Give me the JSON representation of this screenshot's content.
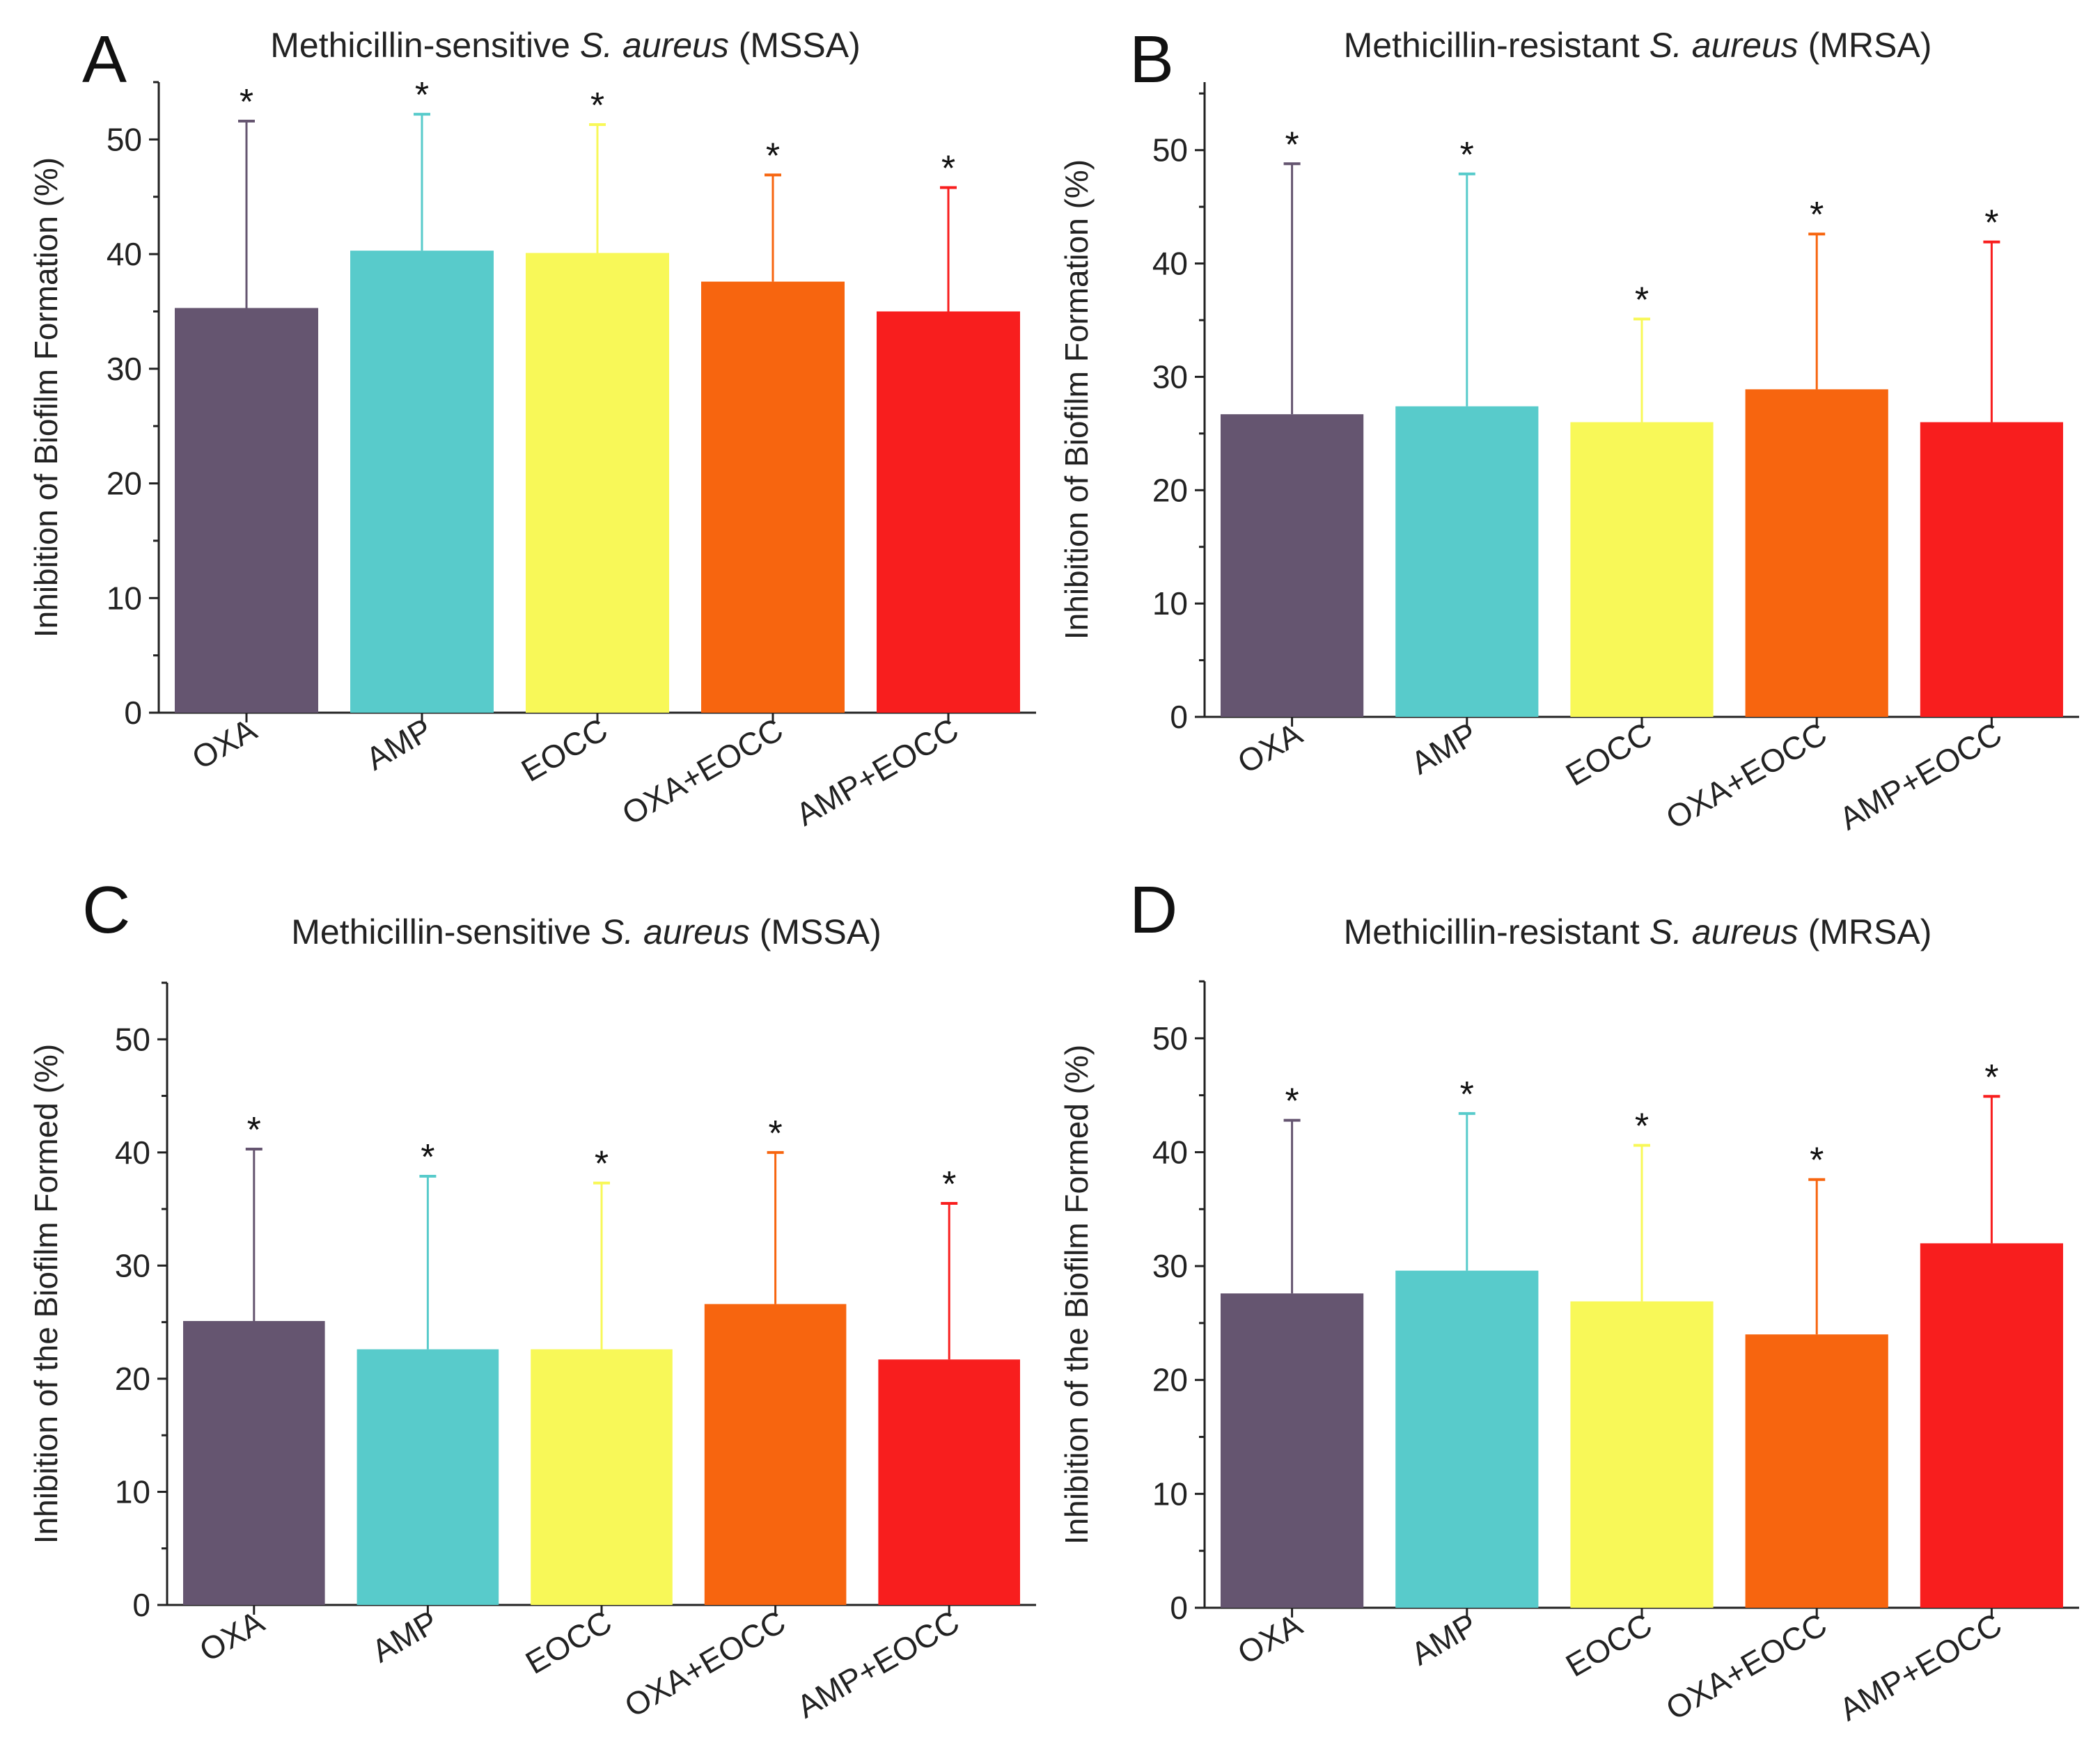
{
  "chart_data": [
    {
      "panel": "A",
      "type": "bar",
      "title_prefix": "Methicillin-sensitive ",
      "title_italic": "S. aureus",
      "title_suffix": " (MSSA)",
      "ylabel": "Inhibition of Biofilm Formation (%)",
      "ylim": [
        0,
        55
      ],
      "yticks": [
        0,
        10,
        20,
        30,
        40,
        50
      ],
      "categories": [
        "OXA",
        "AMP",
        "EOCC",
        "OXA+EOCC",
        "AMP+EOCC"
      ],
      "values": [
        35.3,
        40.3,
        40.1,
        37.6,
        35.0
      ],
      "error_top": [
        51.6,
        52.2,
        51.3,
        46.9,
        45.8
      ],
      "significance": [
        "*",
        "*",
        "*",
        "*",
        "*"
      ]
    },
    {
      "panel": "B",
      "type": "bar",
      "title_prefix": "Methicillin-resistant ",
      "title_italic": "S. aureus",
      "title_suffix": " (MRSA)",
      "ylabel": "Inhibition of Biofilm Formation (%)",
      "ylim": [
        0,
        56
      ],
      "yticks": [
        0,
        10,
        20,
        30,
        40,
        50
      ],
      "categories": [
        "OXA",
        "AMP",
        "EOCC",
        "OXA+EOCC",
        "AMP+EOCC"
      ],
      "values": [
        26.7,
        27.4,
        26.0,
        28.9,
        26.0
      ],
      "error_top": [
        48.8,
        47.9,
        35.1,
        42.6,
        41.9
      ],
      "significance": [
        "*",
        "*",
        "*",
        "*",
        "*"
      ]
    },
    {
      "panel": "C",
      "type": "bar",
      "title_prefix": "Methicillin-sensitive ",
      "title_italic": "S. aureus",
      "title_suffix": " (MSSA)",
      "ylabel": "Inhibition of the Biofilm Formed (%)",
      "ylim": [
        0,
        55
      ],
      "yticks": [
        0,
        10,
        20,
        30,
        40,
        50
      ],
      "categories": [
        "OXA",
        "AMP",
        "EOCC",
        "OXA+EOCC",
        "AMP+EOCC"
      ],
      "values": [
        25.1,
        22.6,
        22.6,
        26.6,
        21.7
      ],
      "error_top": [
        40.3,
        37.9,
        37.3,
        40.0,
        35.5
      ],
      "significance": [
        "*",
        "*",
        "*",
        "*",
        "*"
      ]
    },
    {
      "panel": "D",
      "type": "bar",
      "title_prefix": "Methicillin-resistant ",
      "title_italic": "S. aureus",
      "title_suffix": " (MRSA)",
      "ylabel": "Inhibition of the Biofilm Formed (%)",
      "ylim": [
        0,
        55
      ],
      "yticks": [
        0,
        10,
        20,
        30,
        40,
        50
      ],
      "categories": [
        "OXA",
        "AMP",
        "EOCC",
        "OXA+EOCC",
        "AMP+EOCC"
      ],
      "values": [
        27.6,
        29.6,
        26.9,
        24.0,
        32.0
      ],
      "error_top": [
        42.8,
        43.4,
        40.6,
        37.6,
        44.9
      ],
      "significance": [
        "*",
        "*",
        "*",
        "*",
        "*"
      ]
    }
  ],
  "colors": {
    "bars": [
      "#655570",
      "#58cbcb",
      "#f8f858",
      "#f7650f",
      "#f81e1e"
    ],
    "error_bars": [
      "#655570",
      "#58cbcb",
      "#f8f858",
      "#f7650f",
      "#f81e1e"
    ]
  }
}
